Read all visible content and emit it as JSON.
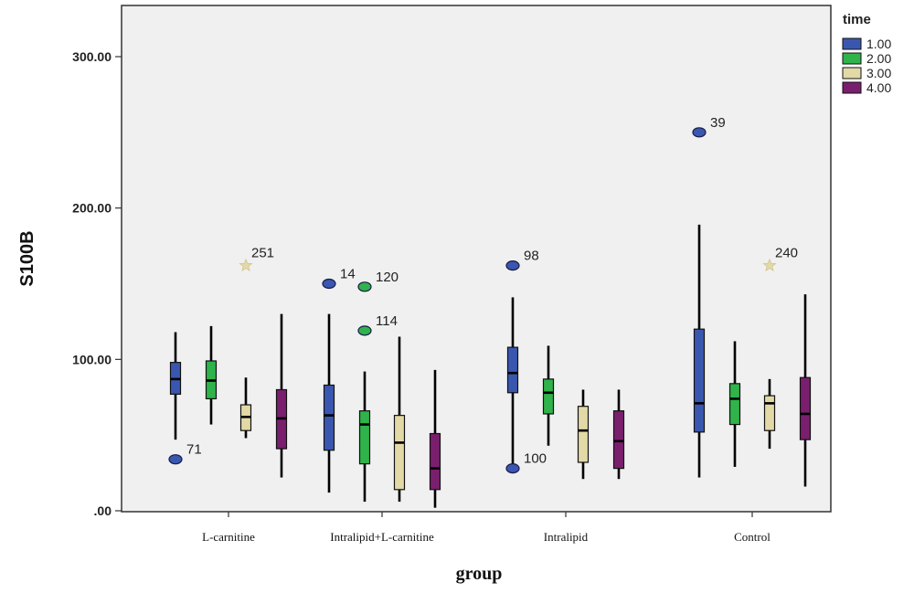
{
  "chart_data": {
    "type": "boxplot",
    "xlabel": "group",
    "ylabel": "S100B",
    "ylim": [
      0,
      330
    ],
    "yticks": [
      {
        "value": 0,
        "label": ".00"
      },
      {
        "value": 100,
        "label": "100.00"
      },
      {
        "value": 200,
        "label": "200.00"
      },
      {
        "value": 300,
        "label": "300.00"
      }
    ],
    "categories": [
      "L-carnitine",
      "Intralipid+L-carnitine",
      "Intralipid",
      "Control"
    ],
    "legend": {
      "title": "time",
      "position": "top-right",
      "entries": [
        {
          "label": "1.00",
          "color": "#3a57b0"
        },
        {
          "label": "2.00",
          "color": "#2fb34a"
        },
        {
          "label": "3.00",
          "color": "#e3d9a6"
        },
        {
          "label": "4.00",
          "color": "#7a1f6e"
        }
      ]
    },
    "groups": [
      {
        "category": "L-carnitine",
        "boxes": [
          {
            "series": "1.00",
            "min": 47,
            "q1": 77,
            "median": 87,
            "q3": 98,
            "max": 118
          },
          {
            "series": "2.00",
            "min": 57,
            "q1": 74,
            "median": 86,
            "q3": 99,
            "max": 122
          },
          {
            "series": "3.00",
            "min": 48,
            "q1": 53,
            "median": 62,
            "q3": 70,
            "max": 88
          },
          {
            "series": "4.00",
            "min": 22,
            "q1": 41,
            "median": 61,
            "q3": 80,
            "max": 130
          }
        ],
        "outliers": [
          {
            "series": "1.00",
            "value": 34,
            "label": "71",
            "kind": "circle"
          },
          {
            "series": "3.00",
            "value": 162,
            "label": "251",
            "kind": "star"
          }
        ]
      },
      {
        "category": "Intralipid+L-carnitine",
        "boxes": [
          {
            "series": "1.00",
            "min": 12,
            "q1": 40,
            "median": 63,
            "q3": 83,
            "max": 130
          },
          {
            "series": "2.00",
            "min": 6,
            "q1": 31,
            "median": 57,
            "q3": 66,
            "max": 92
          },
          {
            "series": "3.00",
            "min": 6,
            "q1": 14,
            "median": 45,
            "q3": 63,
            "max": 115
          },
          {
            "series": "4.00",
            "min": 2,
            "q1": 14,
            "median": 28,
            "q3": 51,
            "max": 93
          }
        ],
        "outliers": [
          {
            "series": "1.00",
            "value": 150,
            "label": "14",
            "kind": "circle"
          },
          {
            "series": "2.00",
            "value": 148,
            "label": "120",
            "kind": "circle"
          },
          {
            "series": "2.00",
            "value": 119,
            "label": "114",
            "kind": "circle"
          }
        ]
      },
      {
        "category": "Intralipid",
        "boxes": [
          {
            "series": "1.00",
            "min": 28,
            "q1": 78,
            "median": 91,
            "q3": 108,
            "max": 141
          },
          {
            "series": "2.00",
            "min": 43,
            "q1": 64,
            "median": 78,
            "q3": 87,
            "max": 109
          },
          {
            "series": "3.00",
            "min": 21,
            "q1": 32,
            "median": 53,
            "q3": 69,
            "max": 80
          },
          {
            "series": "4.00",
            "min": 21,
            "q1": 28,
            "median": 46,
            "q3": 66,
            "max": 80
          }
        ],
        "outliers": [
          {
            "series": "1.00",
            "value": 162,
            "label": "98",
            "kind": "circle"
          },
          {
            "series": "1.00",
            "value": 28,
            "label": "100",
            "kind": "circle"
          }
        ]
      },
      {
        "category": "Control",
        "boxes": [
          {
            "series": "1.00",
            "min": 22,
            "q1": 52,
            "median": 71,
            "q3": 120,
            "max": 189
          },
          {
            "series": "2.00",
            "min": 29,
            "q1": 57,
            "median": 74,
            "q3": 84,
            "max": 112
          },
          {
            "series": "3.00",
            "min": 41,
            "q1": 53,
            "median": 71,
            "q3": 76,
            "max": 87
          },
          {
            "series": "4.00",
            "min": 16,
            "q1": 47,
            "median": 64,
            "q3": 88,
            "max": 143
          }
        ],
        "outliers": [
          {
            "series": "1.00",
            "value": 250,
            "label": "39",
            "kind": "circle"
          },
          {
            "series": "3.00",
            "value": 162,
            "label": "240",
            "kind": "star"
          }
        ]
      }
    ]
  }
}
